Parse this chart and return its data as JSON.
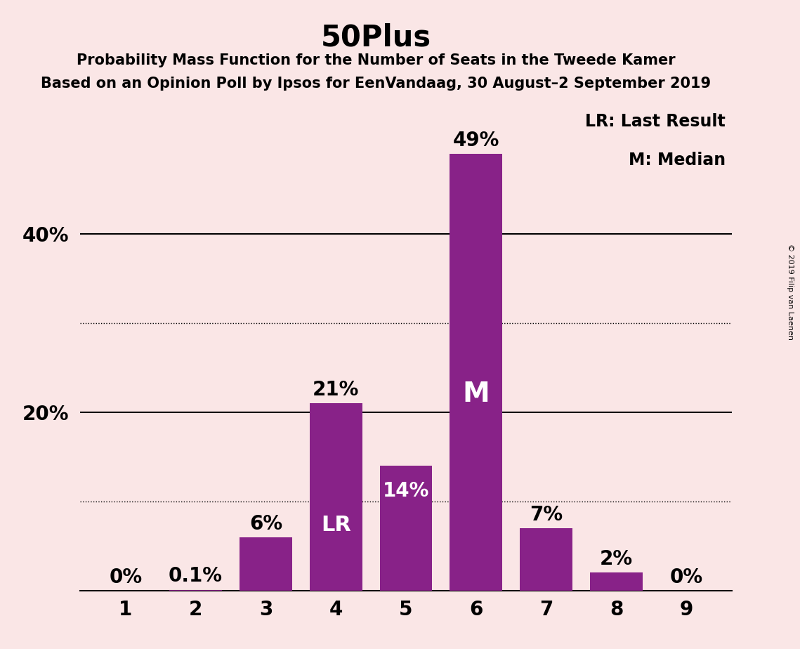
{
  "title": "50Plus",
  "subtitle1": "Probability Mass Function for the Number of Seats in the Tweede Kamer",
  "subtitle2": "Based on an Opinion Poll by Ipsos for EenVandaag, 30 August–2 September 2019",
  "copyright": "© 2019 Filip van Laenen",
  "categories": [
    1,
    2,
    3,
    4,
    5,
    6,
    7,
    8,
    9
  ],
  "values": [
    0.0,
    0.1,
    6.0,
    21.0,
    14.0,
    49.0,
    7.0,
    2.0,
    0.0
  ],
  "bar_color": "#882288",
  "background_color": "#FAE6E6",
  "label_outside_color": "#000000",
  "label_inside_color": "#FFFFFF",
  "labels": [
    "0%",
    "0.1%",
    "6%",
    "21%",
    "14%",
    "49%",
    "7%",
    "2%",
    "0%"
  ],
  "lr_bar_idx": 3,
  "median_bar_idx": 5,
  "lr_label": "LR",
  "median_label": "M",
  "legend_lr": "LR: Last Result",
  "legend_m": "M: Median",
  "dotted_lines": [
    10,
    30
  ],
  "solid_lines": [
    20,
    40
  ],
  "ylim": [
    0,
    55
  ],
  "title_fontsize": 30,
  "subtitle_fontsize": 15,
  "axis_tick_fontsize": 20,
  "bar_label_fontsize": 20,
  "inside_label_fontsize": 22,
  "legend_fontsize": 17,
  "ytick_vals": [
    20,
    40
  ],
  "ytick_labels": [
    "20%",
    "40%"
  ]
}
